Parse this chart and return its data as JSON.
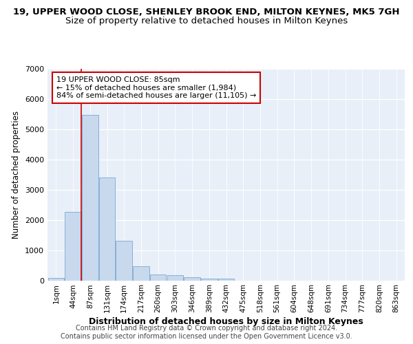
{
  "title1": "19, UPPER WOOD CLOSE, SHENLEY BROOK END, MILTON KEYNES, MK5 7GH",
  "title2": "Size of property relative to detached houses in Milton Keynes",
  "xlabel": "Distribution of detached houses by size in Milton Keynes",
  "ylabel": "Number of detached properties",
  "categories": [
    "1sqm",
    "44sqm",
    "87sqm",
    "131sqm",
    "174sqm",
    "217sqm",
    "260sqm",
    "303sqm",
    "346sqm",
    "389sqm",
    "432sqm",
    "475sqm",
    "518sqm",
    "561sqm",
    "604sqm",
    "648sqm",
    "691sqm",
    "734sqm",
    "777sqm",
    "820sqm",
    "863sqm"
  ],
  "values": [
    75,
    2270,
    5480,
    3400,
    1310,
    460,
    195,
    165,
    95,
    65,
    50,
    0,
    0,
    0,
    0,
    0,
    0,
    0,
    0,
    0,
    0
  ],
  "bar_color": "#c8d9ee",
  "bar_edge_color": "#7aa8d0",
  "vline_color": "#cc0000",
  "annotation_text": "19 UPPER WOOD CLOSE: 85sqm\n← 15% of detached houses are smaller (1,984)\n84% of semi-detached houses are larger (11,105) →",
  "annotation_box_color": "#ffffff",
  "annotation_box_edge": "#cc0000",
  "ylim": [
    0,
    7000
  ],
  "yticks": [
    0,
    1000,
    2000,
    3000,
    4000,
    5000,
    6000,
    7000
  ],
  "bg_color": "#e8eff8",
  "footer": "Contains HM Land Registry data © Crown copyright and database right 2024.\nContains public sector information licensed under the Open Government Licence v3.0.",
  "title1_fontsize": 9.5,
  "title2_fontsize": 9.5,
  "xlabel_fontsize": 9,
  "ylabel_fontsize": 8.5,
  "footer_fontsize": 7,
  "tick_fontsize": 8,
  "xtick_fontsize": 7.5
}
